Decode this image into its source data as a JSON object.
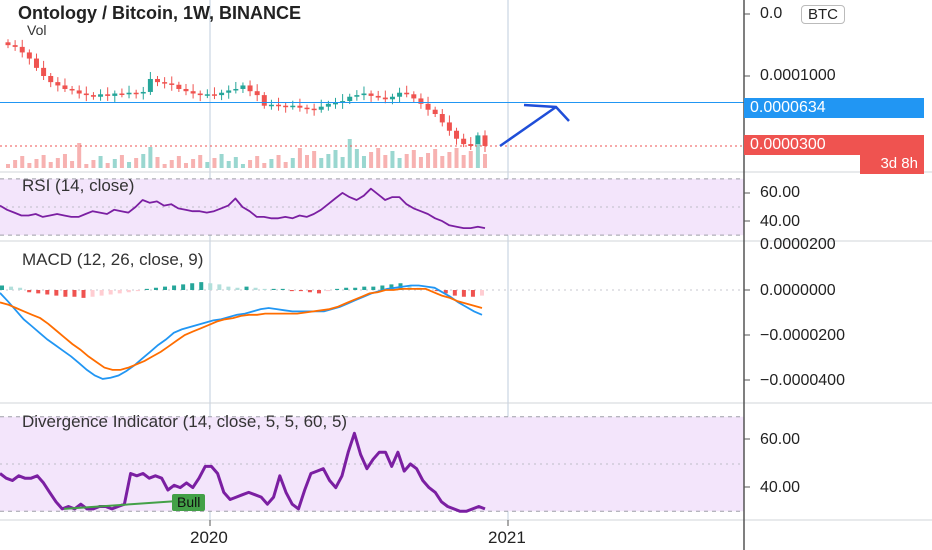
{
  "header": {
    "title": "Ontology / Bitcoin, 1W, BINANCE",
    "volume_label": "Vol",
    "currency_badge": "BTC"
  },
  "colors": {
    "up": "#26a69a",
    "down": "#ef5350",
    "up_volume": "#9ad7d0",
    "down_volume": "#f7b2b1",
    "horizontal_line": "#2196f3",
    "arrow": "#1f4ed8",
    "rsi": "#7b1fa2",
    "rsi_band": "#f3e5fb",
    "macd": "#2196f3",
    "signal": "#ff6d00",
    "hist_up_strong": "#26a69a",
    "hist_up_weak": "#b2dfdb",
    "hist_down_strong": "#ef5350",
    "hist_down_weak": "#ffcdd2",
    "last_price_tag": "#ef5350",
    "line_price_tag": "#2196f3",
    "bull_tag": "#43a047"
  },
  "price_axis": {
    "labels": [
      "0.0",
      "0.0001000"
    ],
    "line_tag": "0.0000634",
    "last_tag": "0.0000300",
    "countdown": "3d 8h"
  },
  "time_axis": {
    "labels": [
      "2020",
      "2021"
    ]
  },
  "rsi_pane": {
    "title": "RSI (14, close)",
    "labels": [
      "60.00",
      "40.00"
    ]
  },
  "macd_pane": {
    "title": "MACD (12, 26, close, 9)",
    "labels": [
      "0.0000200",
      "0.0000000",
      "−0.0000200",
      "−0.0000400"
    ]
  },
  "div_pane": {
    "title": "Divergence Indicator (14, close, 5, 5, 60, 5)",
    "labels": [
      "60.00",
      "40.00"
    ],
    "bull_label": "Bull"
  },
  "chart_data": [
    {
      "type": "candlestick",
      "title": "Ontology / Bitcoin, 1W, BINANCE",
      "y_scale": "log",
      "horizontal_line": 6.34e-05,
      "last_price": 3e-05,
      "closes": [
        0.00017,
        0.000165,
        0.00015,
        0.000135,
        0.000115,
        0.0001,
        9e-05,
        8.5e-05,
        8e-05,
        7.8e-05,
        7.4e-05,
        7.2e-05,
        7e-05,
        7.3e-05,
        7.1e-05,
        7.4e-05,
        7.3e-05,
        7.5e-05,
        7.4e-05,
        7.6e-05,
        9.5e-05,
        9e-05,
        8.8e-05,
        8.6e-05,
        8e-05,
        7.7e-05,
        7.4e-05,
        7.2e-05,
        7.3e-05,
        7.2e-05,
        7.5e-05,
        7.8e-05,
        8e-05,
        8.5e-05,
        7.7e-05,
        7.2e-05,
        6e-05,
        6.1e-05,
        6e-05,
        5.9e-05,
        6e-05,
        5.8e-05,
        5.7e-05,
        5.6e-05,
        5.9e-05,
        6.2e-05,
        6.3e-05,
        6.5e-05,
        7e-05,
        7.2e-05,
        7.4e-05,
        7.1e-05,
        6.9e-05,
        6.7e-05,
        7e-05,
        7.5e-05,
        7.3e-05,
        6.8e-05,
        6.2e-05,
        5.6e-05,
        5.2e-05,
        4.5e-05,
        3.9e-05,
        3.4e-05,
        3.1e-05,
        3e-05,
        3.6e-05,
        3e-05
      ],
      "volume": "relative volume bars under price"
    },
    {
      "type": "line",
      "title": "RSI (14, close)",
      "ylim": [
        28,
        72
      ],
      "bands": [
        30,
        70
      ],
      "values": [
        51,
        48,
        46,
        44,
        44,
        45,
        43,
        44,
        45,
        44,
        43,
        43,
        45,
        47,
        46,
        45,
        48,
        47,
        46,
        50,
        55,
        53,
        54,
        51,
        52,
        49,
        48,
        47,
        47,
        46,
        47,
        49,
        51,
        56,
        50,
        47,
        43,
        43,
        42,
        42,
        43,
        42,
        44,
        43,
        45,
        48,
        52,
        56,
        60,
        57,
        55,
        58,
        63,
        59,
        55,
        57,
        57,
        52,
        49,
        47,
        45,
        42,
        40,
        37,
        36,
        35,
        35,
        36,
        35
      ]
    },
    {
      "type": "line",
      "title": "MACD (12, 26, close, 9)",
      "ylim": [
        -4.5e-05,
        2e-05
      ],
      "series": [
        {
          "values": [
            -1.3e-06,
            -5e-06,
            -9e-06,
            -1.3e-05,
            -1.6e-05,
            -1.9e-05,
            -2.2e-05,
            -2.45e-05,
            -2.7e-05,
            -2.95e-05,
            -3.25e-05,
            -3.55e-05,
            -3.8e-05,
            -3.95e-05,
            -3.9e-05,
            -3.8e-05,
            -3.6e-05,
            -3.35e-05,
            -3.05e-05,
            -2.75e-05,
            -2.45e-05,
            -2.2e-05,
            -1.9e-05,
            -1.75e-05,
            -1.65e-05,
            -1.55e-05,
            -1.45e-05,
            -1.35e-05,
            -1.3e-05,
            -1.2e-05,
            -1.1e-05,
            -1.05e-05,
            -9.5e-06,
            -8.5e-06,
            -8e-06,
            -8.5e-06,
            -9e-06,
            -9.5e-06,
            -9.5e-06,
            -9.5e-06,
            -9.5e-06,
            -9.5e-06,
            -8.5e-06,
            -7.5e-06,
            -6e-06,
            -4.5e-06,
            -3e-06,
            -1.5e-06,
            -5e-07,
            5e-07,
            1e-06,
            1.5e-06,
            2e-06,
            2e-06,
            1.5e-06,
            1e-06,
            -1e-06,
            -3e-06,
            -5.5e-06,
            -7.5e-06,
            -9.5e-06,
            -1.1e-05
          ]
        },
        {
          "values": [
            -5.5e-06,
            -6.5e-06,
            -8e-06,
            -9.5e-06,
            -1.1e-05,
            -1.25e-05,
            -1.5e-05,
            -1.8e-05,
            -2.1e-05,
            -2.4e-05,
            -2.65e-05,
            -2.95e-05,
            -3.2e-05,
            -3.45e-05,
            -3.55e-05,
            -3.55e-05,
            -3.45e-05,
            -3.3e-05,
            -3.15e-05,
            -2.95e-05,
            -2.75e-05,
            -2.5e-05,
            -2.25e-05,
            -2e-05,
            -1.85e-05,
            -1.7e-05,
            -1.55e-05,
            -1.4e-05,
            -1.3e-05,
            -1.25e-05,
            -1.15e-05,
            -1.1e-05,
            -1.1e-05,
            -1.05e-05,
            -1.05e-05,
            -1.05e-05,
            -1.05e-05,
            -1.05e-05,
            -1e-05,
            -9.5e-06,
            -9e-06,
            -8.5e-06,
            -7.5e-06,
            -6e-06,
            -4.5e-06,
            -3e-06,
            -1.5e-06,
            -1e-06,
            0,
            0,
            5e-07,
            5e-07,
            5e-07,
            5e-07,
            -1e-06,
            -2.5e-06,
            -3.5e-06,
            -5e-06,
            -6e-06,
            -7e-06,
            -8e-06
          ]
        }
      ],
      "histogram": [
        2e-06,
        1.5e-06,
        1e-06,
        -1e-06,
        -1.5e-06,
        -2e-06,
        -2.5e-06,
        -3e-06,
        -3e-06,
        -3.5e-06,
        -3e-06,
        -2.5e-06,
        -2e-06,
        -1.5e-06,
        -1e-06,
        -5e-07,
        5e-07,
        1e-06,
        1.5e-06,
        2e-06,
        2.5e-06,
        3e-06,
        3.5e-06,
        3e-06,
        2.5e-06,
        1.5e-06,
        1e-06,
        1.5e-06,
        1e-06,
        5e-07,
        5e-07,
        5e-07,
        -5e-07,
        -5e-07,
        -1e-06,
        -1.5e-06,
        -5e-07,
        5e-07,
        1e-06,
        1e-06,
        1.5e-06,
        1.5e-06,
        2e-06,
        2.5e-06,
        3e-06,
        2e-06,
        1e-06,
        5e-07,
        -5e-07,
        -1.5e-06,
        -2.5e-06,
        -3e-06,
        -3e-06,
        -2.5e-06
      ]
    },
    {
      "type": "line",
      "title": "Divergence Indicator (14, close, 5, 5, 60, 5)",
      "ylim": [
        28,
        72
      ],
      "bands": [
        30,
        70
      ],
      "values": [
        46,
        44,
        43,
        45,
        44,
        44,
        45,
        42,
        38,
        34,
        31,
        32,
        31,
        33,
        31,
        31,
        32,
        32,
        31,
        32,
        33,
        46,
        45,
        46,
        44,
        45,
        44,
        39,
        41,
        40,
        42,
        40,
        44,
        49,
        49,
        46,
        38,
        35,
        36,
        37,
        38,
        37,
        36,
        33,
        36,
        45,
        38,
        33,
        31,
        39,
        46,
        47,
        48,
        43,
        40,
        45,
        55,
        63,
        54,
        48,
        52,
        55,
        55,
        49,
        55,
        47,
        50,
        48,
        43,
        40,
        38,
        34,
        32,
        31,
        30,
        30,
        31,
        32,
        31
      ],
      "annotation": "Bull"
    }
  ]
}
